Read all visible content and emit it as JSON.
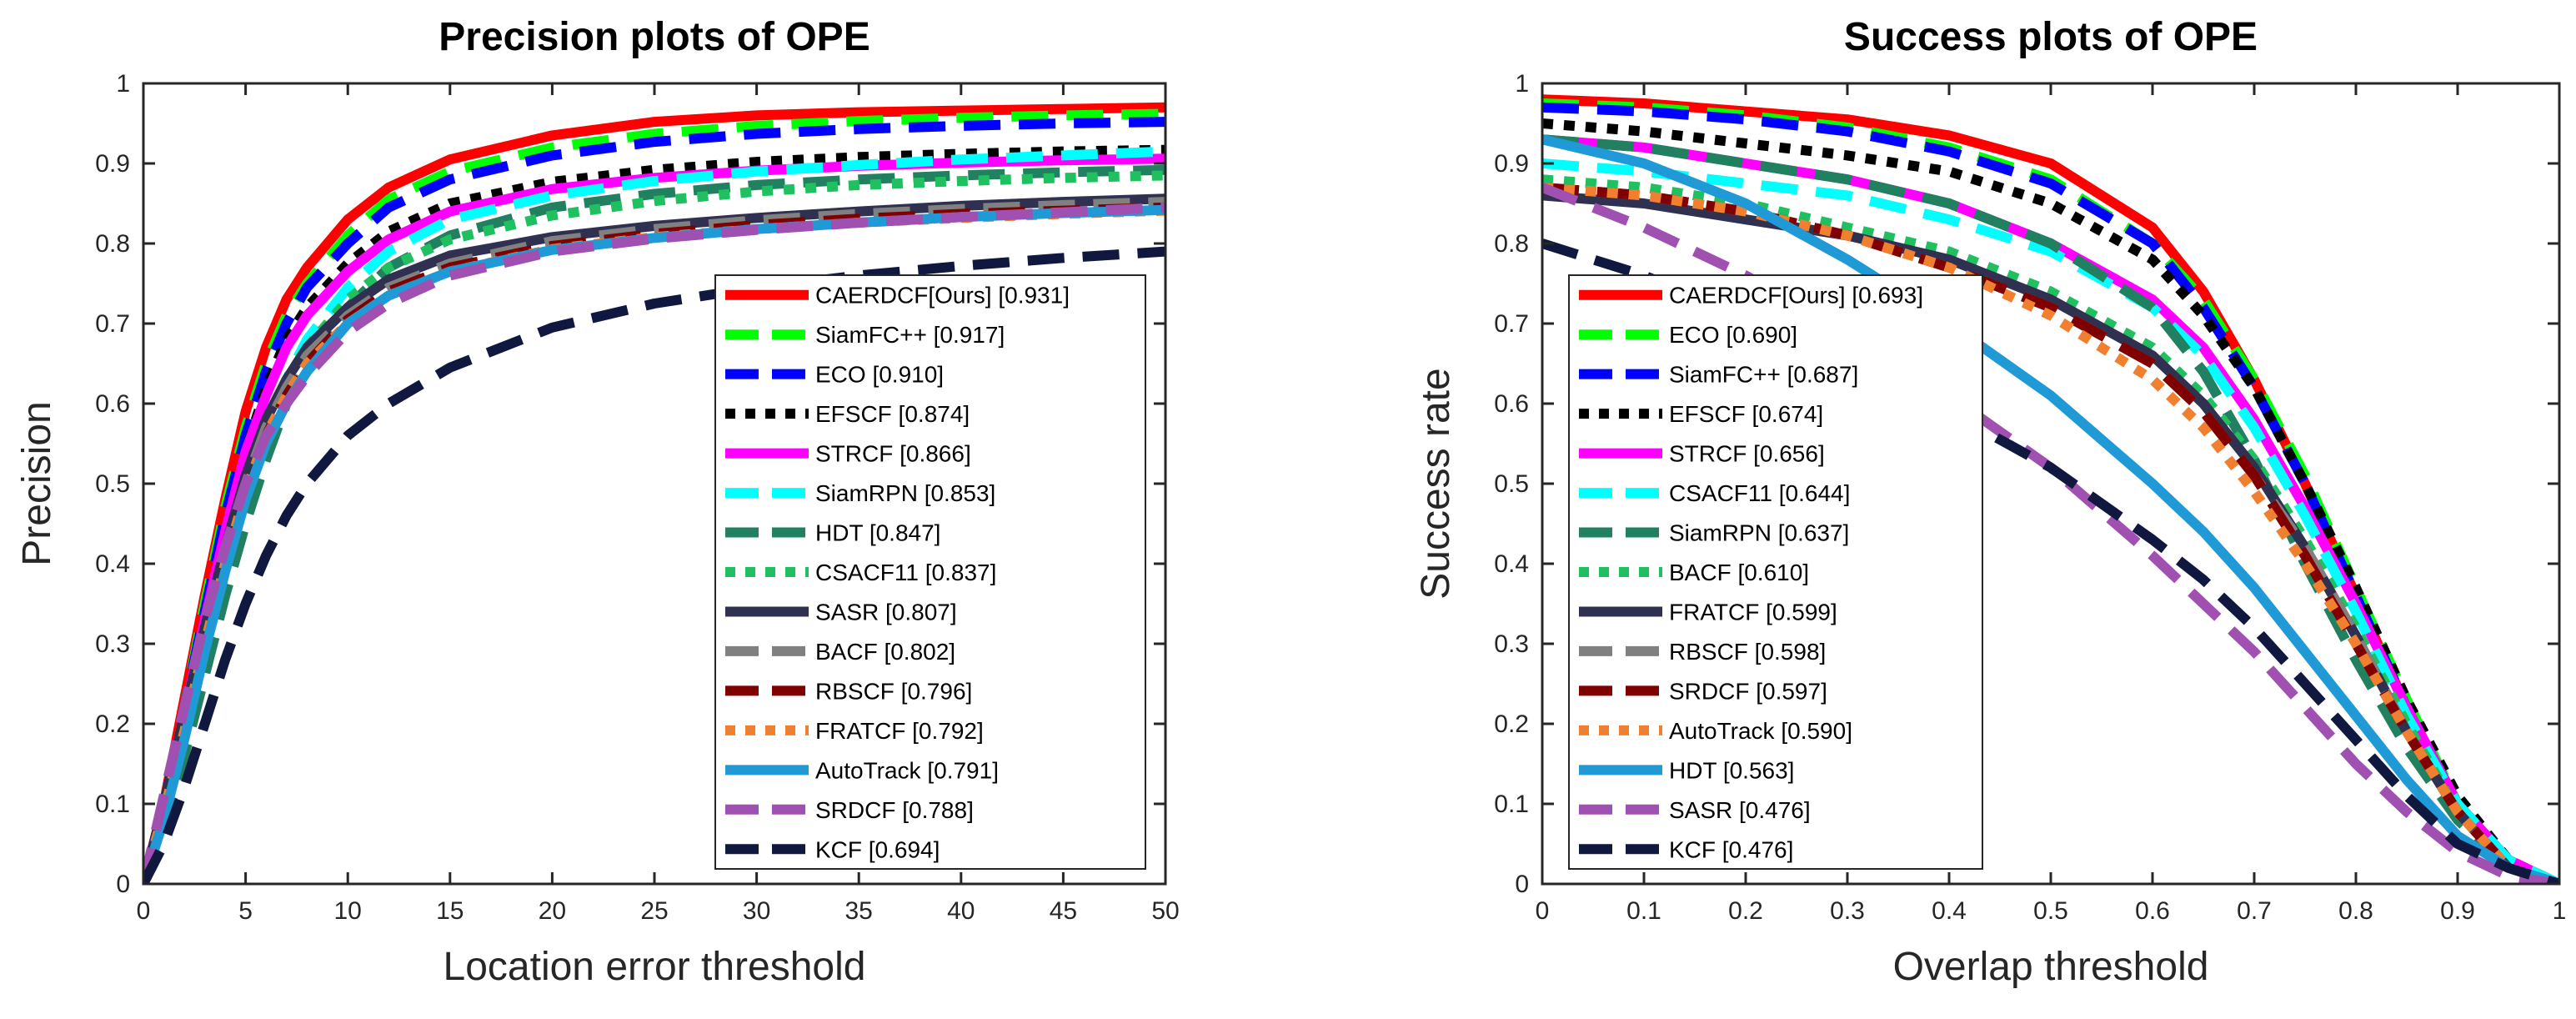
{
  "chart_data": [
    {
      "type": "line",
      "title": "Precision plots of OPE",
      "xlabel": "Location error threshold",
      "ylabel": "Precision",
      "xlim": [
        0,
        50
      ],
      "ylim": [
        0,
        1
      ],
      "xticks": [
        0,
        5,
        10,
        15,
        20,
        25,
        30,
        35,
        40,
        45,
        50
      ],
      "xtick_labels": [
        "0",
        "5",
        "10",
        "15",
        "20",
        "25",
        "30",
        "35",
        "40",
        "45",
        "50"
      ],
      "yticks": [
        0,
        0.1,
        0.2,
        0.3,
        0.4,
        0.5,
        0.6,
        0.7,
        0.8,
        0.9,
        1
      ],
      "ytick_labels": [
        "0",
        "0.1",
        "0.2",
        "0.3",
        "0.4",
        "0.5",
        "0.6",
        "0.7",
        "0.8",
        "0.9",
        "1"
      ],
      "grid": false,
      "legend_position": "bottom-right",
      "x": [
        0,
        1,
        2,
        3,
        4,
        5,
        6,
        7,
        8,
        10,
        12,
        15,
        20,
        25,
        30,
        35,
        40,
        45,
        50
      ],
      "series": [
        {
          "name": "CAERDCF[Ours]",
          "legend": "CAERDCF[Ours] [0.931]",
          "color": "#ff0000",
          "dash": "solid",
          "values": [
            0,
            0.1,
            0.23,
            0.36,
            0.48,
            0.59,
            0.67,
            0.73,
            0.77,
            0.83,
            0.87,
            0.905,
            0.935,
            0.952,
            0.96,
            0.964,
            0.966,
            0.968,
            0.97
          ]
        },
        {
          "name": "SiamFC++",
          "legend": "SiamFC++ [0.917]",
          "color": "#00ff00",
          "dash": "dash",
          "values": [
            0,
            0.1,
            0.22,
            0.35,
            0.47,
            0.57,
            0.65,
            0.71,
            0.75,
            0.81,
            0.855,
            0.89,
            0.92,
            0.937,
            0.947,
            0.953,
            0.957,
            0.96,
            0.962
          ]
        },
        {
          "name": "ECO",
          "legend": "ECO [0.910]",
          "color": "#0000ff",
          "dash": "dash",
          "values": [
            0,
            0.1,
            0.22,
            0.34,
            0.46,
            0.56,
            0.64,
            0.7,
            0.745,
            0.8,
            0.845,
            0.88,
            0.91,
            0.927,
            0.937,
            0.943,
            0.947,
            0.95,
            0.952
          ]
        },
        {
          "name": "EFSCF",
          "legend": "EFSCF [0.874]",
          "color": "#000000",
          "dash": "dot",
          "values": [
            0,
            0.1,
            0.21,
            0.33,
            0.44,
            0.54,
            0.62,
            0.68,
            0.72,
            0.775,
            0.815,
            0.85,
            0.877,
            0.892,
            0.902,
            0.908,
            0.912,
            0.915,
            0.917
          ]
        },
        {
          "name": "STRCF",
          "legend": "STRCF [0.866]",
          "color": "#ff00ff",
          "dash": "solid",
          "values": [
            0,
            0.1,
            0.21,
            0.33,
            0.44,
            0.54,
            0.61,
            0.67,
            0.71,
            0.765,
            0.805,
            0.84,
            0.868,
            0.882,
            0.891,
            0.897,
            0.901,
            0.904,
            0.906
          ]
        },
        {
          "name": "SiamRPN",
          "legend": "SiamRPN [0.853]",
          "color": "#00ffff",
          "dash": "dash",
          "values": [
            0,
            0.07,
            0.17,
            0.28,
            0.39,
            0.49,
            0.57,
            0.63,
            0.68,
            0.745,
            0.79,
            0.83,
            0.86,
            0.878,
            0.89,
            0.898,
            0.905,
            0.91,
            0.915
          ]
        },
        {
          "name": "HDT",
          "legend": "HDT [0.847]",
          "color": "#208060",
          "dash": "dash",
          "values": [
            0,
            0.07,
            0.16,
            0.26,
            0.36,
            0.45,
            0.53,
            0.6,
            0.65,
            0.72,
            0.77,
            0.81,
            0.845,
            0.862,
            0.873,
            0.88,
            0.885,
            0.889,
            0.892
          ]
        },
        {
          "name": "CSACF11",
          "legend": "CSACF11 [0.837]",
          "color": "#20c060",
          "dash": "dot",
          "values": [
            0,
            0.1,
            0.21,
            0.32,
            0.42,
            0.51,
            0.58,
            0.63,
            0.67,
            0.73,
            0.77,
            0.805,
            0.835,
            0.853,
            0.865,
            0.873,
            0.878,
            0.882,
            0.885
          ]
        },
        {
          "name": "SASR",
          "legend": "SASR [0.807]",
          "color": "#303050",
          "dash": "solid",
          "values": [
            0,
            0.1,
            0.21,
            0.32,
            0.42,
            0.51,
            0.58,
            0.63,
            0.67,
            0.72,
            0.755,
            0.785,
            0.808,
            0.822,
            0.832,
            0.84,
            0.847,
            0.852,
            0.856
          ]
        },
        {
          "name": "BACF",
          "legend": "BACF [0.802]",
          "color": "#808080",
          "dash": "dash",
          "values": [
            0,
            0.1,
            0.21,
            0.32,
            0.42,
            0.5,
            0.57,
            0.62,
            0.66,
            0.71,
            0.745,
            0.775,
            0.803,
            0.818,
            0.829,
            0.837,
            0.843,
            0.848,
            0.852
          ]
        },
        {
          "name": "RBSCF",
          "legend": "RBSCF [0.796]",
          "color": "#800000",
          "dash": "dash",
          "values": [
            0,
            0.09,
            0.19,
            0.3,
            0.4,
            0.49,
            0.56,
            0.61,
            0.65,
            0.705,
            0.74,
            0.77,
            0.797,
            0.812,
            0.823,
            0.831,
            0.837,
            0.841,
            0.845
          ]
        },
        {
          "name": "FRATCF",
          "legend": "FRATCF [0.792]",
          "color": "#f08030",
          "dash": "dot",
          "values": [
            0,
            0.09,
            0.19,
            0.3,
            0.4,
            0.49,
            0.56,
            0.61,
            0.65,
            0.7,
            0.735,
            0.765,
            0.793,
            0.808,
            0.818,
            0.826,
            0.832,
            0.837,
            0.841
          ]
        },
        {
          "name": "AutoTrack",
          "legend": "AutoTrack [0.791]",
          "color": "#1f9ad6",
          "dash": "solid",
          "values": [
            0,
            0.08,
            0.18,
            0.29,
            0.39,
            0.48,
            0.55,
            0.6,
            0.64,
            0.7,
            0.735,
            0.765,
            0.792,
            0.807,
            0.818,
            0.826,
            0.833,
            0.838,
            0.842
          ]
        },
        {
          "name": "SRDCF",
          "legend": "SRDCF [0.788]",
          "color": "#a050b0",
          "dash": "dash",
          "values": [
            0,
            0.11,
            0.22,
            0.33,
            0.42,
            0.5,
            0.56,
            0.6,
            0.635,
            0.69,
            0.725,
            0.76,
            0.79,
            0.806,
            0.817,
            0.826,
            0.833,
            0.839,
            0.845
          ]
        },
        {
          "name": "KCF",
          "legend": "KCF [0.694]",
          "color": "#101840",
          "dash": "dash",
          "values": [
            0,
            0.05,
            0.12,
            0.2,
            0.28,
            0.35,
            0.41,
            0.46,
            0.5,
            0.56,
            0.6,
            0.645,
            0.695,
            0.725,
            0.745,
            0.76,
            0.772,
            0.782,
            0.79
          ]
        }
      ]
    },
    {
      "type": "line",
      "title": "Success plots of OPE",
      "xlabel": "Overlap threshold",
      "ylabel": "Success rate",
      "xlim": [
        0,
        1
      ],
      "ylim": [
        0,
        1
      ],
      "xticks": [
        0,
        0.1,
        0.2,
        0.3,
        0.4,
        0.5,
        0.6,
        0.7,
        0.8,
        0.9,
        1
      ],
      "xtick_labels": [
        "0",
        "0.1",
        "0.2",
        "0.3",
        "0.4",
        "0.5",
        "0.6",
        "0.7",
        "0.8",
        "0.9",
        "1"
      ],
      "yticks": [
        0,
        0.1,
        0.2,
        0.3,
        0.4,
        0.5,
        0.6,
        0.7,
        0.8,
        0.9,
        1
      ],
      "ytick_labels": [
        "0",
        "0.1",
        "0.2",
        "0.3",
        "0.4",
        "0.5",
        "0.6",
        "0.7",
        "0.8",
        "0.9",
        "1"
      ],
      "grid": false,
      "legend_position": "bottom-left",
      "x": [
        0,
        0.1,
        0.2,
        0.3,
        0.4,
        0.5,
        0.6,
        0.65,
        0.7,
        0.75,
        0.8,
        0.85,
        0.9,
        0.95,
        1
      ],
      "series": [
        {
          "name": "CAERDCF[Ours]",
          "legend": "CAERDCF[Ours] [0.693]",
          "color": "#ff0000",
          "dash": "solid",
          "values": [
            0.98,
            0.975,
            0.965,
            0.955,
            0.935,
            0.9,
            0.82,
            0.74,
            0.63,
            0.5,
            0.36,
            0.22,
            0.1,
            0.03,
            0
          ]
        },
        {
          "name": "ECO",
          "legend": "ECO [0.690]",
          "color": "#00ff00",
          "dash": "dash",
          "values": [
            0.975,
            0.97,
            0.96,
            0.945,
            0.92,
            0.88,
            0.8,
            0.73,
            0.63,
            0.51,
            0.37,
            0.23,
            0.1,
            0.03,
            0
          ]
        },
        {
          "name": "SiamFC++",
          "legend": "SiamFC++ [0.687]",
          "color": "#0000ff",
          "dash": "dash",
          "values": [
            0.97,
            0.965,
            0.955,
            0.94,
            0.915,
            0.875,
            0.8,
            0.72,
            0.62,
            0.5,
            0.36,
            0.22,
            0.1,
            0.03,
            0
          ]
        },
        {
          "name": "EFSCF",
          "legend": "EFSCF [0.674]",
          "color": "#000000",
          "dash": "dot",
          "values": [
            0.95,
            0.94,
            0.925,
            0.91,
            0.89,
            0.85,
            0.78,
            0.71,
            0.62,
            0.5,
            0.37,
            0.23,
            0.11,
            0.03,
            0
          ]
        },
        {
          "name": "STRCF",
          "legend": "STRCF [0.656]",
          "color": "#ff00ff",
          "dash": "solid",
          "values": [
            0.93,
            0.92,
            0.9,
            0.88,
            0.85,
            0.8,
            0.73,
            0.67,
            0.58,
            0.47,
            0.35,
            0.22,
            0.1,
            0.03,
            0
          ]
        },
        {
          "name": "CSACF11",
          "legend": "CSACF11 [0.644]",
          "color": "#00ffff",
          "dash": "dash",
          "values": [
            0.9,
            0.89,
            0.875,
            0.86,
            0.83,
            0.79,
            0.72,
            0.66,
            0.57,
            0.46,
            0.34,
            0.21,
            0.1,
            0.03,
            0
          ]
        },
        {
          "name": "SiamRPN",
          "legend": "SiamRPN [0.637]",
          "color": "#208060",
          "dash": "dash",
          "values": [
            0.93,
            0.92,
            0.9,
            0.88,
            0.85,
            0.8,
            0.72,
            0.64,
            0.53,
            0.4,
            0.28,
            0.17,
            0.08,
            0.02,
            0
          ]
        },
        {
          "name": "BACF",
          "legend": "BACF [0.610]",
          "color": "#20c060",
          "dash": "dot",
          "values": [
            0.88,
            0.87,
            0.85,
            0.82,
            0.79,
            0.74,
            0.67,
            0.61,
            0.53,
            0.43,
            0.32,
            0.2,
            0.09,
            0.02,
            0
          ]
        },
        {
          "name": "FRATCF",
          "legend": "FRATCF [0.599]",
          "color": "#303050",
          "dash": "solid",
          "values": [
            0.86,
            0.85,
            0.83,
            0.81,
            0.78,
            0.73,
            0.66,
            0.6,
            0.52,
            0.42,
            0.31,
            0.19,
            0.09,
            0.02,
            0
          ]
        },
        {
          "name": "RBSCF",
          "legend": "RBSCF [0.598]",
          "color": "#808080",
          "dash": "dash",
          "values": [
            0.87,
            0.86,
            0.84,
            0.81,
            0.77,
            0.72,
            0.65,
            0.59,
            0.51,
            0.42,
            0.31,
            0.19,
            0.09,
            0.02,
            0
          ]
        },
        {
          "name": "SRDCF",
          "legend": "SRDCF [0.597]",
          "color": "#800000",
          "dash": "dash",
          "values": [
            0.87,
            0.86,
            0.84,
            0.81,
            0.77,
            0.72,
            0.65,
            0.59,
            0.51,
            0.41,
            0.3,
            0.19,
            0.09,
            0.02,
            0
          ]
        },
        {
          "name": "AutoTrack",
          "legend": "AutoTrack [0.590]",
          "color": "#f08030",
          "dash": "dot",
          "values": [
            0.87,
            0.86,
            0.84,
            0.81,
            0.77,
            0.71,
            0.63,
            0.57,
            0.49,
            0.4,
            0.3,
            0.19,
            0.09,
            0.02,
            0
          ]
        },
        {
          "name": "HDT",
          "legend": "HDT [0.563]",
          "color": "#1f9ad6",
          "dash": "solid",
          "values": [
            0.93,
            0.9,
            0.85,
            0.78,
            0.7,
            0.61,
            0.5,
            0.44,
            0.37,
            0.29,
            0.21,
            0.13,
            0.06,
            0.02,
            0
          ]
        },
        {
          "name": "SASR",
          "legend": "SASR [0.476]",
          "color": "#a050b0",
          "dash": "dash",
          "values": [
            0.87,
            0.82,
            0.76,
            0.69,
            0.61,
            0.52,
            0.41,
            0.35,
            0.29,
            0.22,
            0.15,
            0.09,
            0.04,
            0.01,
            0
          ]
        },
        {
          "name": "KCF",
          "legend": "KCF [0.476]",
          "color": "#101840",
          "dash": "dash",
          "values": [
            0.8,
            0.76,
            0.71,
            0.65,
            0.59,
            0.52,
            0.43,
            0.38,
            0.32,
            0.25,
            0.18,
            0.11,
            0.05,
            0.02,
            0
          ]
        }
      ]
    }
  ]
}
